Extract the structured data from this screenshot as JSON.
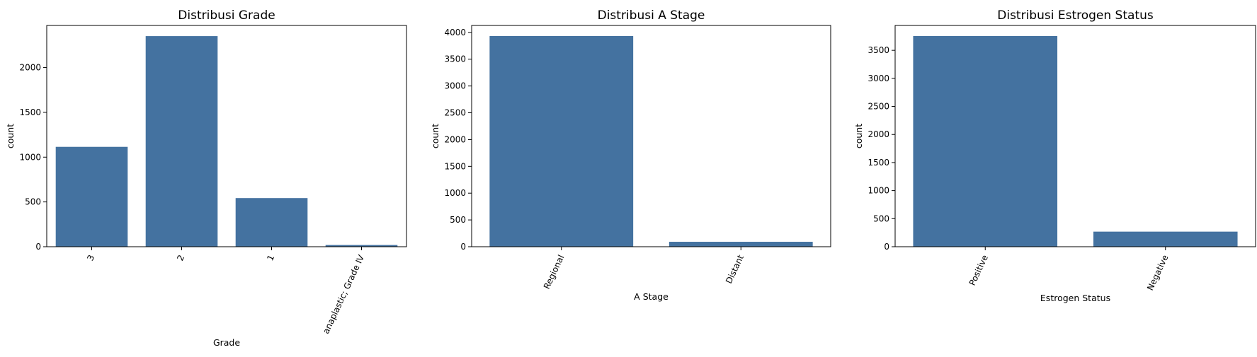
{
  "chart_data": [
    {
      "type": "bar",
      "title": "Distribusi Grade",
      "xlabel": "Grade",
      "ylabel": "count",
      "categories": [
        "3",
        "2",
        "1",
        "anaplastic; Grade IV"
      ],
      "values": [
        1115,
        2351,
        543,
        19
      ],
      "ylim": [
        0,
        2470
      ],
      "yticks": [
        0,
        500,
        1000,
        1500,
        2000
      ],
      "color": "#4472a0",
      "grid": false
    },
    {
      "type": "bar",
      "title": "Distribusi A Stage",
      "xlabel": "A Stage",
      "ylabel": "count",
      "categories": [
        "Regional",
        "Distant"
      ],
      "values": [
        3932,
        92
      ],
      "ylim": [
        0,
        4130
      ],
      "yticks": [
        0,
        500,
        1000,
        1500,
        2000,
        2500,
        3000,
        3500,
        4000
      ],
      "color": "#4472a0",
      "grid": false
    },
    {
      "type": "bar",
      "title": "Distribusi Estrogen Status",
      "xlabel": "Estrogen Status",
      "ylabel": "count",
      "categories": [
        "Positive",
        "Negative"
      ],
      "values": [
        3755,
        269
      ],
      "ylim": [
        0,
        3943
      ],
      "yticks": [
        0,
        500,
        1000,
        1500,
        2000,
        2500,
        3000,
        3500
      ],
      "color": "#4472a0",
      "grid": false
    }
  ]
}
